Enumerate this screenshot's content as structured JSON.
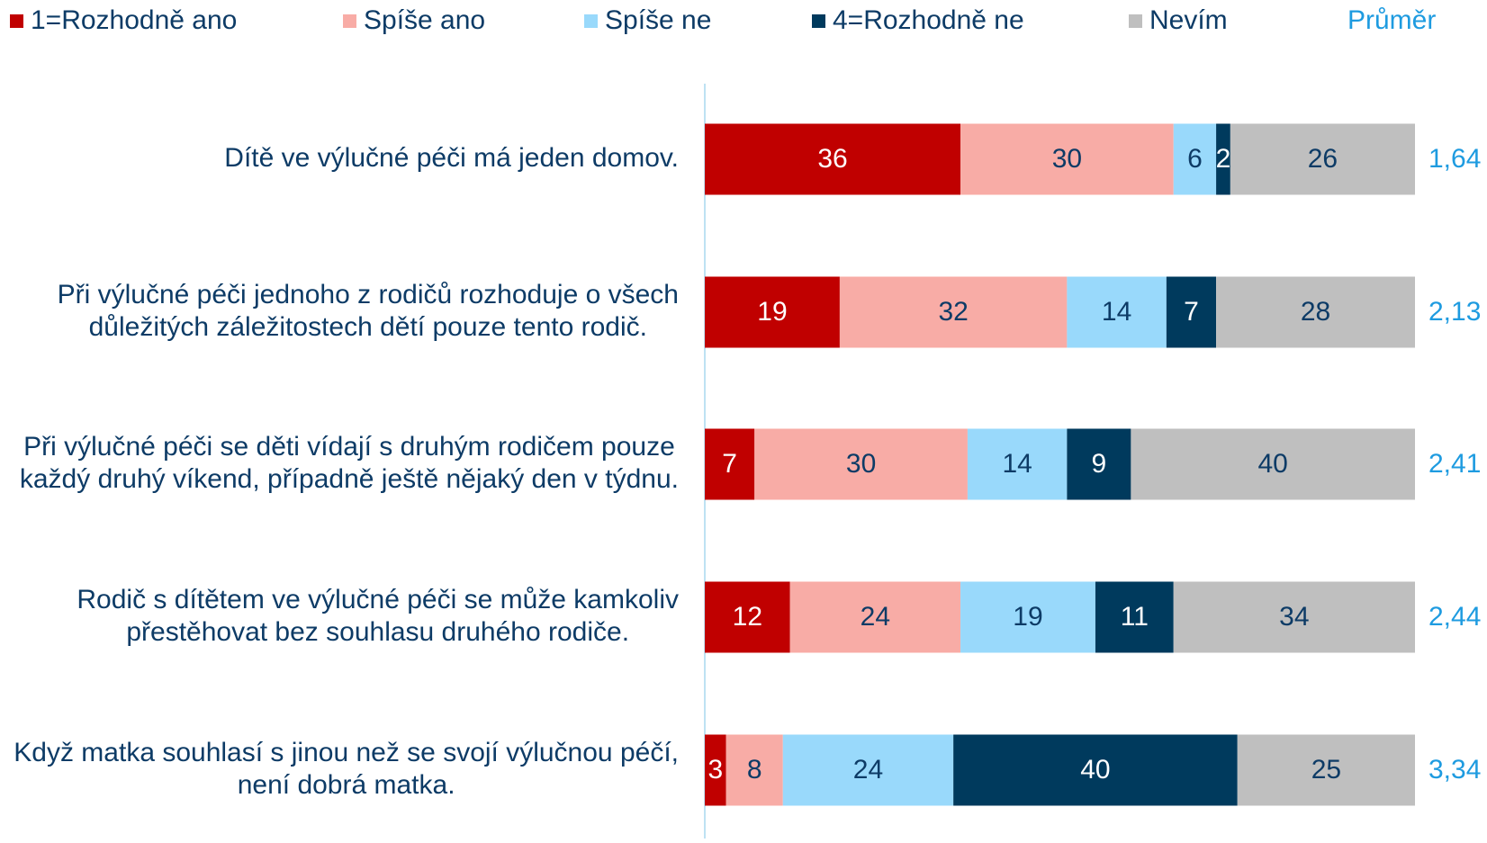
{
  "chart_data": {
    "type": "stacked-bar-horizontal",
    "categories": [
      [
        "Dítě ve výlučné péči má jeden domov."
      ],
      [
        "Při výlučné péči jednoho z rodičů rozhoduje o všech",
        "důležitých záležitostech dětí pouze tento rodič."
      ],
      [
        "Při výlučné péči se děti vídají s druhým rodičem pouze",
        "každý druhý víkend, případně ještě nějaký den v týdnu."
      ],
      [
        "Rodič s dítětem ve výlučné péči se může kamkoliv",
        "přestěhovat bez souhlasu druhého rodiče."
      ],
      [
        "Když matka souhlasí s jinou než se svojí výlučnou péčí,",
        "není dobrá matka."
      ]
    ],
    "series": [
      {
        "name": "1=Rozhodně ano",
        "color": "#c00000",
        "label_color": "#ffffff",
        "values": [
          36,
          19,
          7,
          12,
          3
        ]
      },
      {
        "name": "Spíše ano",
        "color": "#f8aca6",
        "label_color": "#0d3b66",
        "values": [
          30,
          32,
          30,
          24,
          8
        ]
      },
      {
        "name": "Spíše ne",
        "color": "#99d9fb",
        "label_color": "#0d3b66",
        "values": [
          6,
          14,
          14,
          19,
          24
        ]
      },
      {
        "name": "4=Rozhodně ne",
        "color": "#003a5d",
        "label_color": "#ffffff",
        "values": [
          2,
          7,
          9,
          11,
          40
        ]
      },
      {
        "name": "Nevím",
        "color": "#bfbfbf",
        "label_color": "#0d3b66",
        "values": [
          26,
          28,
          40,
          34,
          25
        ]
      }
    ],
    "average": {
      "name": "Průměr",
      "color": "#1e9be0",
      "values": [
        1.64,
        2.13,
        2.41,
        2.44,
        3.34
      ],
      "value_labels": [
        "1,64",
        "2,13",
        "2,41",
        "2,44",
        "3,34"
      ]
    },
    "xlim": [
      0,
      100
    ]
  }
}
